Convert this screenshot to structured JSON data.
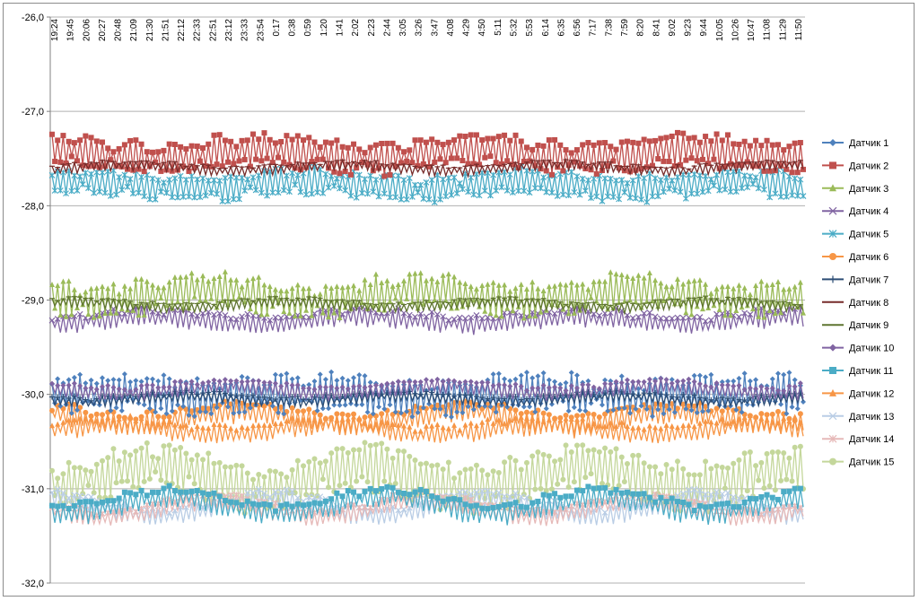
{
  "chart_data": {
    "type": "line",
    "title": "",
    "xlabel": "",
    "ylabel": "",
    "ylim": [
      -32.0,
      -26.0
    ],
    "y_ticks": [
      "-26,0",
      "-27,0",
      "-28,0",
      "-29,0",
      "-30,0",
      "-31,0",
      "-32,0"
    ],
    "y_tick_values": [
      -26,
      -27,
      -28,
      -29,
      -30,
      -31,
      -32
    ],
    "x_tick_labels": [
      "19:24",
      "19:45",
      "20:06",
      "20:27",
      "20:48",
      "21:09",
      "21:30",
      "21:51",
      "22:12",
      "22:33",
      "22:51",
      "23:12",
      "23:33",
      "23:54",
      "0:17",
      "0:38",
      "0:59",
      "1:20",
      "1:41",
      "2:02",
      "2:23",
      "2:44",
      "3:05",
      "3:26",
      "3:47",
      "4:08",
      "4:29",
      "4:50",
      "5:11",
      "5:32",
      "5:53",
      "6:14",
      "6:35",
      "6:56",
      "7:17",
      "7:38",
      "7:59",
      "8:20",
      "8:41",
      "9:02",
      "9:23",
      "9:44",
      "10:05",
      "10:26",
      "10:47",
      "11:08",
      "11:29",
      "11:50"
    ],
    "gridlines": "horizontal",
    "legend_position": "right",
    "series": [
      {
        "name": "Датчик 1",
        "color": "#4F81BD",
        "marker": "diamond",
        "base": -30.0,
        "amp": 0.17,
        "wave": 0.03
      },
      {
        "name": "Датчик 2",
        "color": "#C0504D",
        "marker": "square",
        "base": -27.45,
        "amp": 0.15,
        "wave": 0.05
      },
      {
        "name": "Датчик 3",
        "color": "#9BBB59",
        "marker": "triangle",
        "base": -28.95,
        "amp": 0.16,
        "wave": 0.06
      },
      {
        "name": "Датчик 4",
        "color": "#8064A2",
        "marker": "x",
        "base": -29.22,
        "amp": 0.09,
        "wave": 0.04
      },
      {
        "name": "Датчик 5",
        "color": "#4BACC6",
        "marker": "star",
        "base": -27.78,
        "amp": 0.12,
        "wave": 0.04
      },
      {
        "name": "Датчик 6",
        "color": "#F79646",
        "marker": "circle",
        "base": -30.25,
        "amp": 0.1,
        "wave": 0.06
      },
      {
        "name": "Датчик 7",
        "color": "#2C4D75",
        "marker": "plus",
        "base": -30.05,
        "amp": 0.05,
        "wave": 0.03
      },
      {
        "name": "Датчик 8",
        "color": "#772C2A",
        "marker": "dash",
        "base": -27.6,
        "amp": 0.05,
        "wave": 0.03
      },
      {
        "name": "Датчик 9",
        "color": "#5F7530",
        "marker": "dash",
        "base": -29.05,
        "amp": 0.05,
        "wave": 0.03
      },
      {
        "name": "Датчик 10",
        "color": "#8064A2",
        "marker": "diamond",
        "base": -29.95,
        "amp": 0.07,
        "wave": 0.04
      },
      {
        "name": "Датчик 11",
        "color": "#4BACC6",
        "marker": "square",
        "base": -31.18,
        "amp": 0.1,
        "wave": 0.09
      },
      {
        "name": "Датчик 12",
        "color": "#F79646",
        "marker": "triangle",
        "base": -30.38,
        "amp": 0.09,
        "wave": 0.05
      },
      {
        "name": "Датчик 13",
        "color": "#B9CDE5",
        "marker": "x",
        "base": -31.2,
        "amp": 0.09,
        "wave": 0.09
      },
      {
        "name": "Датчик 14",
        "color": "#E6B9B8",
        "marker": "star",
        "base": -31.22,
        "amp": 0.08,
        "wave": 0.09
      },
      {
        "name": "Датчик 15",
        "color": "#C4D79B",
        "marker": "circle",
        "base": -30.88,
        "amp": 0.22,
        "wave": 0.12
      }
    ]
  }
}
